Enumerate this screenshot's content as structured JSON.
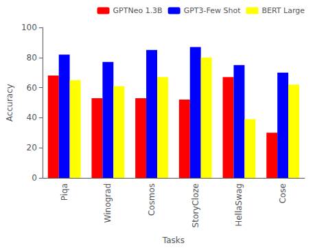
{
  "chart_data": {
    "type": "bar",
    "categories": [
      "Piqa",
      "Winograd",
      "Cosmos",
      "StoryCloze",
      "HellaSwag",
      "Cose"
    ],
    "series": [
      {
        "name": "GPTNeo 1.3B",
        "color": "#ff0000",
        "values": [
          68,
          53,
          53,
          52,
          67,
          30
        ]
      },
      {
        "name": "GPT3-Few Shot",
        "color": "#0000ff",
        "values": [
          82,
          77,
          85,
          87,
          75,
          70
        ]
      },
      {
        "name": "BERT Large",
        "color": "#ffff00",
        "values": [
          65,
          61,
          67,
          80,
          39,
          62
        ]
      }
    ],
    "xlabel": "Tasks",
    "ylabel": "Accuracy",
    "ylim": [
      0,
      100
    ],
    "yticks": [
      0,
      20,
      40,
      60,
      80,
      100
    ],
    "legend": "upper right",
    "grid": false
  }
}
